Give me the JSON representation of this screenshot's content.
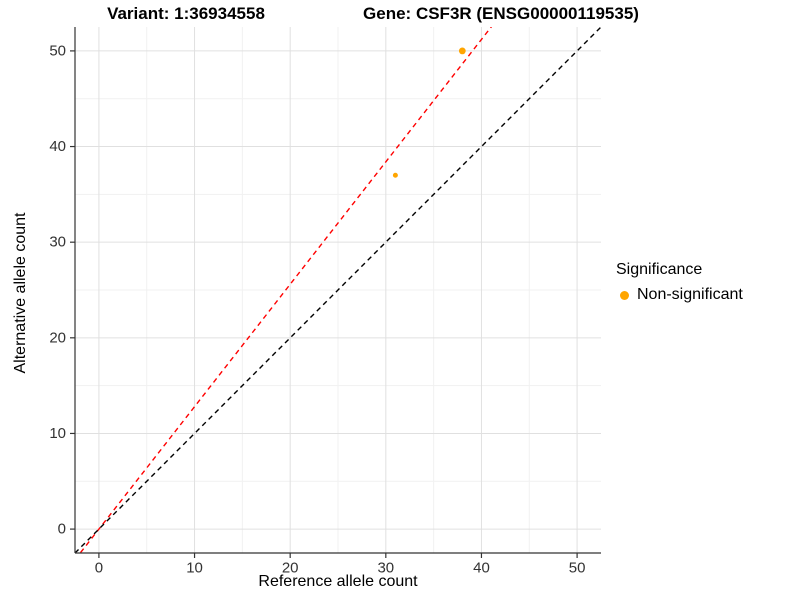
{
  "header": {
    "title_left": "Variant: 1:36934558",
    "title_right": "Gene: CSF3R (ENSG00000119535)"
  },
  "axes": {
    "x_label": "Reference allele count",
    "y_label": "Alternative allele count"
  },
  "legend": {
    "title": "Significance",
    "items": [
      {
        "label": "Non-significant",
        "color": "#FFA500"
      }
    ]
  },
  "colors": {
    "point": "#FFA500",
    "fit_line": "#FF0000",
    "identity_line": "#000000",
    "grid_major": "#E0E0E0",
    "grid_minor": "#F1F1F1",
    "axis": "#333333",
    "tick_label": "#333333"
  },
  "chart_data": {
    "type": "scatter",
    "title_left": "Variant: 1:36934558",
    "title_right": "Gene: CSF3R (ENSG00000119535)",
    "xlabel": "Reference allele count",
    "ylabel": "Alternative allele count",
    "xlim": [
      -2.5,
      52.5
    ],
    "ylim": [
      -2.5,
      52.5
    ],
    "x_ticks": [
      0,
      10,
      20,
      30,
      40,
      50
    ],
    "y_ticks": [
      0,
      10,
      20,
      30,
      40,
      50
    ],
    "x_minor_ticks": [
      5,
      15,
      25,
      35,
      45
    ],
    "y_minor_ticks": [
      5,
      15,
      25,
      35,
      45
    ],
    "grid": true,
    "legend_position": "right",
    "series": [
      {
        "name": "Non-significant",
        "color": "#FFA500",
        "points": [
          {
            "x": 38,
            "y": 50,
            "r": 3.4
          },
          {
            "x": 31,
            "y": 37,
            "r": 2.5
          }
        ]
      }
    ],
    "lines": [
      {
        "name": "fitted-ratio-line",
        "slope": 1.28,
        "intercept": 0,
        "color": "#FF0000",
        "style": "dashed"
      },
      {
        "name": "identity-line",
        "slope": 1.0,
        "intercept": 0,
        "color": "#000000",
        "style": "dashed"
      }
    ]
  }
}
